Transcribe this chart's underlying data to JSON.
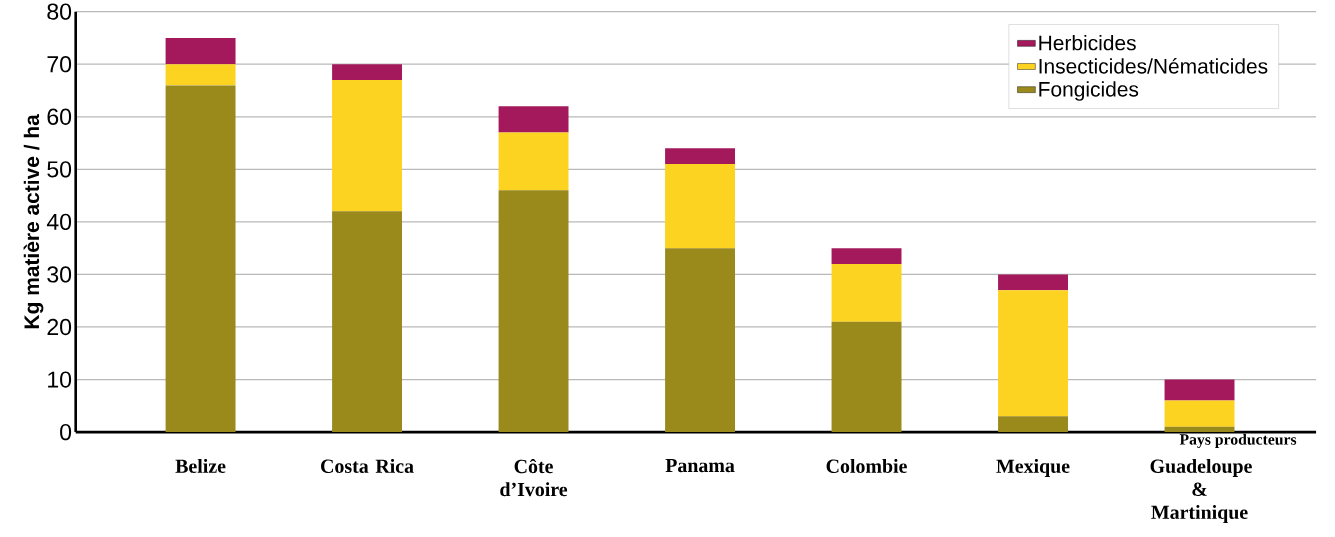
{
  "chart_data": {
    "type": "bar",
    "stacked": true,
    "ylabel": "Kg  matière active / ha",
    "xlabel": "Pays producteurs",
    "categories": [
      "Belize",
      "Costa Rica",
      "Côte d’Ivoire",
      "Panama",
      "Colombie",
      "Mexique",
      "Guadeloupe & Martinique"
    ],
    "series": [
      {
        "name": "Fongicides",
        "color": "#9a8a1c",
        "values": [
          66,
          42,
          46,
          35,
          21,
          3,
          1
        ]
      },
      {
        "name": "Insecticides/Nématicides",
        "color": "#fcd320",
        "values": [
          4,
          25,
          11,
          16,
          11,
          24,
          5
        ]
      },
      {
        "name": "Herbicides",
        "color": "#a3195b",
        "values": [
          5,
          3,
          5,
          3,
          3,
          3,
          4
        ]
      }
    ],
    "ylim": [
      0,
      80
    ],
    "yticks": [
      0,
      10,
      20,
      30,
      40,
      50,
      60,
      70,
      80
    ],
    "grid": "y",
    "legend": "top right"
  }
}
